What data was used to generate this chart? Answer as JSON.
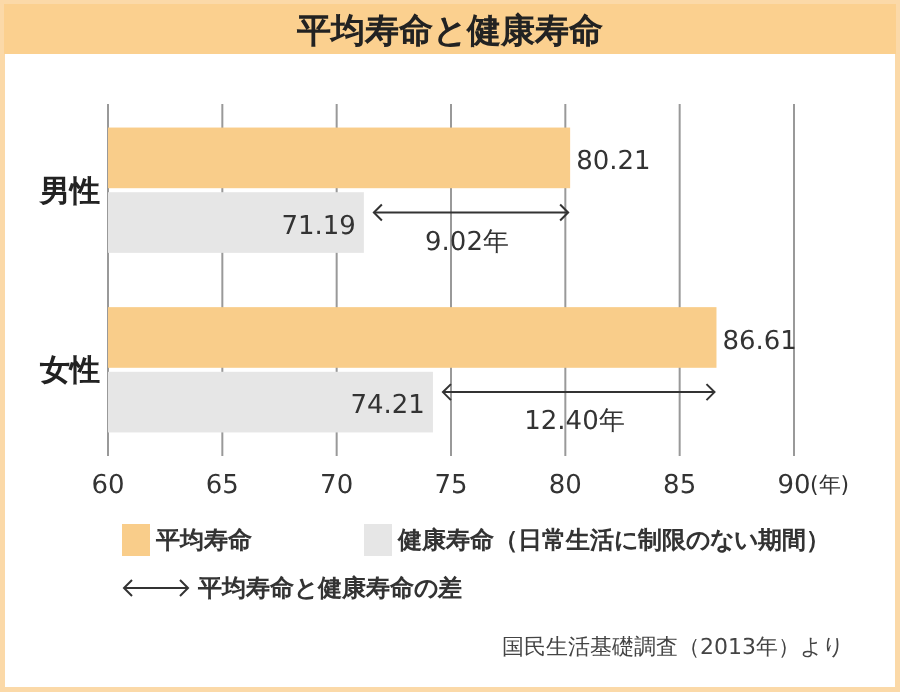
{
  "chart_data": {
    "type": "bar",
    "orientation": "horizontal",
    "title": "平均寿命と健康寿命",
    "xlabel": "(年)",
    "categories": [
      "男性",
      "女性"
    ],
    "series": [
      {
        "name": "平均寿命",
        "color": "#f9cd8a",
        "values": [
          80.21,
          86.61
        ]
      },
      {
        "name": "健康寿命（日常生活に制限のない期間）",
        "color": "#e6e6e6",
        "values": [
          71.19,
          74.21
        ]
      }
    ],
    "xlim": [
      60,
      90
    ],
    "xticks": [
      60,
      65,
      70,
      75,
      80,
      85,
      90
    ],
    "grid": "x",
    "data_labels": true,
    "legend": "bottom",
    "annotations": [
      {
        "text": "9.02年",
        "x": 75.7,
        "y": "男性"
      },
      {
        "text": "12.40年",
        "x": 80.4,
        "y": "女性"
      },
      "平均寿命と健康寿命の差",
      "国民生活基礎調査（2013年）より"
    ]
  }
}
